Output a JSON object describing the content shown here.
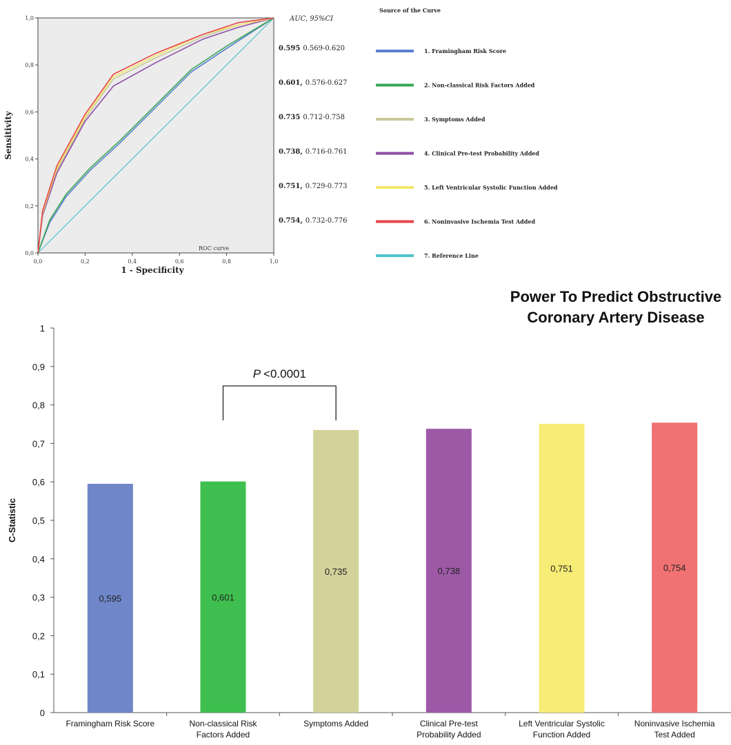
{
  "chart_data": [
    {
      "type": "line",
      "title": "",
      "inner_label": "ROC curve",
      "xlabel": "1 - Specificity",
      "ylabel": "Sensitivity",
      "xlim": [
        0,
        1
      ],
      "ylim": [
        0,
        1
      ],
      "xticks": [
        "0,0",
        "0,2",
        "0,4",
        "0,6",
        "0,8",
        "1,0"
      ],
      "yticks": [
        "0,0",
        "0,2",
        "0,4",
        "0,6",
        "0,8",
        "1,0"
      ],
      "grid": false,
      "auc_header": "AUC, 95%CI",
      "legend_title": "Source of the Curve",
      "legend_position": "right",
      "series": [
        {
          "name": "1. Framingham Risk Score",
          "color": "#5b7fcf",
          "auc": "0.595",
          "ci": "0.569-0.620",
          "x": [
            0,
            0.05,
            0.12,
            0.22,
            0.35,
            0.5,
            0.65,
            0.8,
            1.0
          ],
          "y": [
            0,
            0.13,
            0.24,
            0.35,
            0.47,
            0.62,
            0.77,
            0.87,
            1.0
          ]
        },
        {
          "name": "2. Non-classical Risk Factors Added",
          "color": "#3aa655",
          "auc": "0.601,",
          "ci": "0.576-0.627",
          "x": [
            0,
            0.05,
            0.12,
            0.22,
            0.35,
            0.5,
            0.65,
            0.8,
            1.0
          ],
          "y": [
            0,
            0.14,
            0.25,
            0.36,
            0.48,
            0.63,
            0.78,
            0.88,
            1.0
          ]
        },
        {
          "name": "3. Symptoms Added",
          "color": "#c9c99a",
          "auc": "0.735",
          "ci": "0.712-0.758",
          "x": [
            0,
            0.02,
            0.08,
            0.2,
            0.32,
            0.5,
            0.7,
            0.85,
            1.0
          ],
          "y": [
            0,
            0.16,
            0.35,
            0.57,
            0.74,
            0.83,
            0.92,
            0.97,
            1.0
          ]
        },
        {
          "name": "4. Clinical Pre-test Probability Added",
          "color": "#8e4ea6",
          "auc": "0.738,",
          "ci": "0.716-0.761",
          "x": [
            0,
            0.02,
            0.08,
            0.2,
            0.32,
            0.5,
            0.7,
            0.85,
            1.0
          ],
          "y": [
            0,
            0.16,
            0.34,
            0.56,
            0.71,
            0.81,
            0.91,
            0.96,
            1.0
          ]
        },
        {
          "name": "5. Left Ventricular Systolic Function Added",
          "color": "#f3e76a",
          "auc": "0.751,",
          "ci": "0.729-0.773",
          "x": [
            0,
            0.02,
            0.08,
            0.2,
            0.32,
            0.5,
            0.7,
            0.85,
            1.0
          ],
          "y": [
            0,
            0.17,
            0.36,
            0.58,
            0.75,
            0.84,
            0.93,
            0.97,
            1.0
          ]
        },
        {
          "name": "6. Noninvasive Ischemia Test Added",
          "color": "#e8444c",
          "auc": "0.754,",
          "ci": "0.732-0.776",
          "x": [
            0,
            0.02,
            0.08,
            0.2,
            0.32,
            0.5,
            0.7,
            0.85,
            1.0
          ],
          "y": [
            0,
            0.18,
            0.37,
            0.59,
            0.76,
            0.85,
            0.93,
            0.98,
            1.0
          ]
        },
        {
          "name": "7. Reference Line",
          "color": "#4ec3c8",
          "auc": "",
          "ci": "",
          "x": [
            0,
            1
          ],
          "y": [
            0,
            1
          ]
        }
      ]
    },
    {
      "type": "bar",
      "title_lines": [
        "Power To Predict Obstructive",
        "Coronary Artery Disease"
      ],
      "xlabel": "",
      "ylabel": "C-Statistic",
      "ylim": [
        0,
        1
      ],
      "yticks": [
        "0",
        "0,1",
        "0,2",
        "0,3",
        "0,4",
        "0,5",
        "0,6",
        "0,7",
        "0,8",
        "0,9",
        "1"
      ],
      "grid": false,
      "categories": [
        [
          "Framingham Risk Score"
        ],
        [
          "Non-classical Risk",
          "Factors Added"
        ],
        [
          "Symptoms Added"
        ],
        [
          "Clinical Pre-test",
          "Probability Added"
        ],
        [
          "Left Ventricular Systolic",
          "Function Added"
        ],
        [
          "Noninvasive Ischemia",
          "Test Added"
        ]
      ],
      "values": [
        0.595,
        0.601,
        0.735,
        0.738,
        0.751,
        0.754
      ],
      "value_labels": [
        "0,595",
        "0,601",
        "0,735",
        "0,738",
        "0,751",
        "0,754"
      ],
      "colors": [
        "#6f86c8",
        "#3fbf4f",
        "#d3d29a",
        "#9d59a6",
        "#f6ec76",
        "#f07272"
      ],
      "annotation": {
        "p_italic": "P",
        "p_rest": "<0.0001",
        "from_index": 1,
        "to_index": 2
      }
    }
  ]
}
